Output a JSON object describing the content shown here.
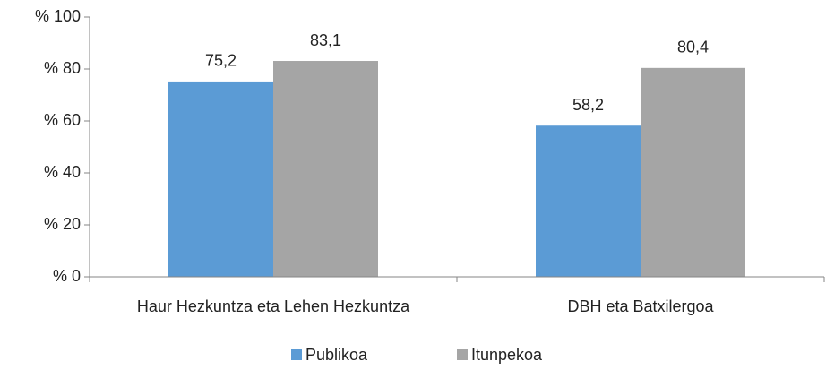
{
  "chart_data": {
    "type": "bar",
    "categories": [
      "Haur Hezkuntza eta Lehen Hezkuntza",
      "DBH eta Batxilergoa"
    ],
    "series": [
      {
        "name": "Publikoa",
        "color": "#5b9bd5",
        "values": [
          75.2,
          58.2
        ],
        "value_labels": [
          "75,2",
          "58,2"
        ]
      },
      {
        "name": "Itunpekoa",
        "color": "#a5a5a5",
        "values": [
          83.1,
          80.4
        ],
        "value_labels": [
          "83,1",
          "80,4"
        ]
      }
    ],
    "ylim": [
      0,
      100
    ],
    "yticks": [
      {
        "value": 0,
        "label": "% 0"
      },
      {
        "value": 20,
        "label": "% 20"
      },
      {
        "value": 40,
        "label": "% 40"
      },
      {
        "value": 60,
        "label": "% 60"
      },
      {
        "value": 80,
        "label": "% 80"
      },
      {
        "value": 100,
        "label": "% 100"
      }
    ],
    "legend": "bottom"
  }
}
